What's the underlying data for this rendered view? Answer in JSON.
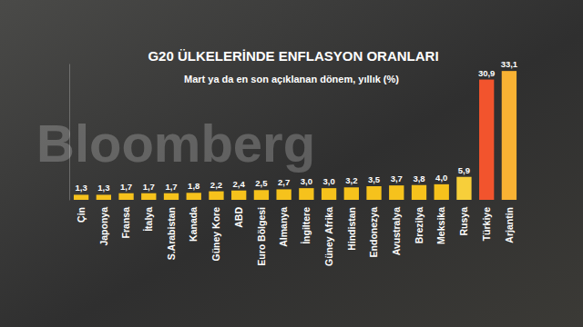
{
  "chart_data": {
    "type": "bar",
    "title": "G20 ÜLKELERİNDE ENFLASYON ORANLARI",
    "subtitle": "Mart ya da en son açıklanan dönem, yıllık (%)",
    "annotations": [
      "Bloomberg"
    ],
    "categories": [
      "Çin",
      "Japonya",
      "Fransa",
      "İtalya",
      "S.Arabistan",
      "Kanada",
      "Güney Kore",
      "ABD",
      "Euro Bölgesi",
      "Almanya",
      "İngiltere",
      "Güney Afrika",
      "Hindistan",
      "Endonezya",
      "Avustralya",
      "Brezilya",
      "Meksika",
      "Rusya",
      "Türkiye",
      "Arjantin"
    ],
    "values": [
      1.3,
      1.3,
      1.7,
      1.7,
      1.7,
      1.8,
      2.2,
      2.4,
      2.5,
      2.7,
      3.0,
      3.0,
      3.2,
      3.5,
      3.7,
      3.8,
      4.0,
      5.9,
      30.9,
      33.1
    ],
    "value_labels": [
      "1,3",
      "1,3",
      "1,7",
      "1,7",
      "1,7",
      "1,8",
      "2,2",
      "2,4",
      "2,5",
      "2,7",
      "3,0",
      "3,0",
      "3,2",
      "3,5",
      "3,7",
      "3,8",
      "4,0",
      "5,9",
      "30,9",
      "33,1"
    ],
    "colors": [
      "#f6c21c",
      "#f6c21c",
      "#f6c21c",
      "#f6c21c",
      "#f6c21c",
      "#f6c21c",
      "#f6c21c",
      "#f6c21c",
      "#f6c21c",
      "#f6c21c",
      "#f6c21c",
      "#f6c21c",
      "#f6c21c",
      "#f6c21c",
      "#f6c21c",
      "#f6c21c",
      "#f6c21c",
      "#f7cf3a",
      "#f2542d",
      "#f9b233"
    ],
    "ylim": [
      0,
      35
    ],
    "yticks": [],
    "tick_labels": "x",
    "data_labels": true,
    "grid": false
  }
}
